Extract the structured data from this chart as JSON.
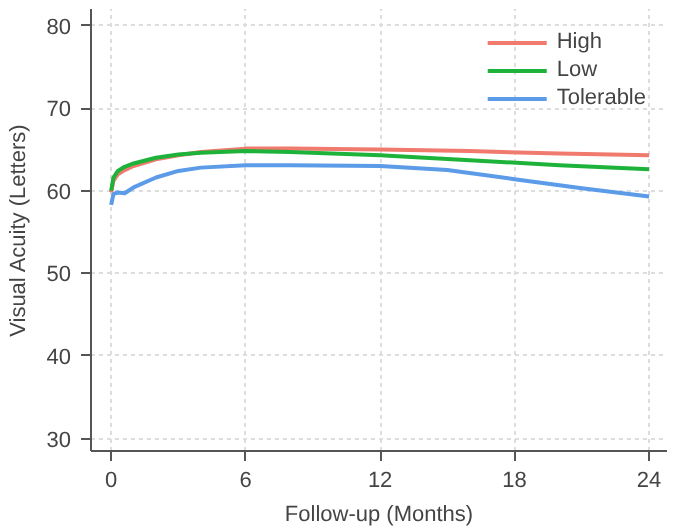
{
  "chart_data": {
    "type": "line",
    "xlabel": "Follow-up (Months)",
    "ylabel": "Visual Acuity (Letters)",
    "xlim": [
      -0.9,
      24.8
    ],
    "ylim": [
      28.5,
      82
    ],
    "xticks": [
      0,
      6,
      12,
      18,
      24
    ],
    "yticks": [
      30,
      40,
      50,
      60,
      70,
      80
    ],
    "grid": true,
    "legend": "top right",
    "line_style": "solid",
    "series": [
      {
        "name": "High",
        "color": "#f07a6e",
        "x": [
          0,
          0.1,
          0.3,
          0.6,
          1,
          2,
          3,
          4,
          6,
          8,
          12,
          16,
          20,
          24
        ],
        "values": [
          59.8,
          61.2,
          62.0,
          62.5,
          63.0,
          63.8,
          64.3,
          64.7,
          65.1,
          65.1,
          65.0,
          64.8,
          64.5,
          64.3
        ]
      },
      {
        "name": "Low",
        "color": "#1db33a",
        "x": [
          0,
          0.1,
          0.3,
          0.6,
          1,
          2,
          3,
          4,
          6,
          8,
          12,
          16,
          20,
          24
        ],
        "values": [
          60.0,
          61.6,
          62.4,
          62.9,
          63.3,
          64.0,
          64.4,
          64.6,
          64.8,
          64.7,
          64.3,
          63.7,
          63.1,
          62.6
        ]
      },
      {
        "name": "Tolerable",
        "color": "#5b9be8",
        "x": [
          0,
          0.1,
          0.3,
          0.6,
          1,
          2,
          3,
          4,
          6,
          8,
          12,
          15,
          18,
          21,
          24
        ],
        "values": [
          58.3,
          59.6,
          59.8,
          59.7,
          60.4,
          61.6,
          62.4,
          62.8,
          63.1,
          63.1,
          63.0,
          62.5,
          61.4,
          60.3,
          59.3
        ]
      }
    ]
  }
}
